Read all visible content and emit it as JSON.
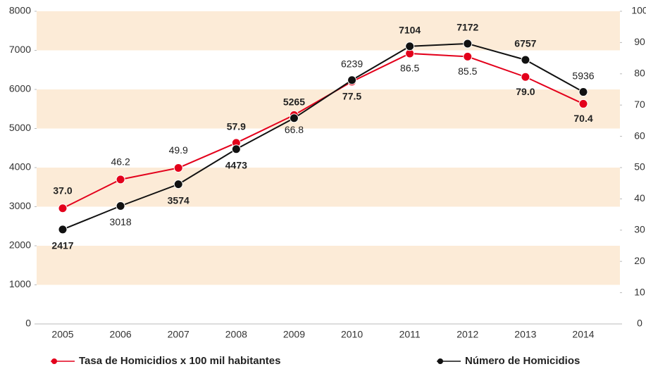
{
  "chart_data": {
    "type": "line",
    "categories": [
      "2005",
      "2006",
      "2007",
      "2008",
      "2009",
      "2010",
      "2011",
      "2012",
      "2013",
      "2014"
    ],
    "series": [
      {
        "name": "Tasa de Homicidios x 100 mil habitantes",
        "color": "#e3001b",
        "axis": "y2",
        "values": [
          37.0,
          46.2,
          49.9,
          57.9,
          66.8,
          77.5,
          86.5,
          85.5,
          79.0,
          70.4
        ],
        "value_labels": [
          "37.0",
          "46.2",
          "49.9",
          "57.9",
          "66.8",
          "77.5",
          "86.5",
          "85.5",
          "79.0",
          "70.4"
        ]
      },
      {
        "name": "Número de Homicidios",
        "color": "#111111",
        "values": [
          2417,
          3018,
          3574,
          4473,
          5265,
          6239,
          7104,
          7172,
          6757,
          5936
        ]
      }
    ],
    "ylim": [
      0,
      8000
    ],
    "yticks": [
      0,
      1000,
      2000,
      3000,
      4000,
      5000,
      6000,
      7000,
      8000
    ],
    "y2lim": [
      0,
      100
    ],
    "y2ticks": [
      0,
      10,
      20,
      30,
      40,
      50,
      60,
      70,
      80,
      90,
      100
    ],
    "band_color": "#fcebd7",
    "legend": "bottom"
  }
}
